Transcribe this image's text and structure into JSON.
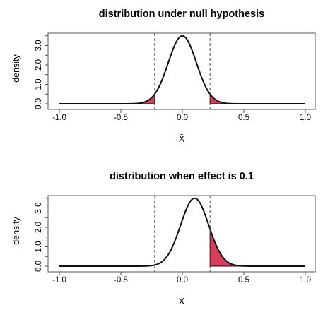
{
  "chart_data": [
    {
      "type": "line",
      "title": "distribution under null hypothesis",
      "xlabel": "X̄",
      "ylabel": "density",
      "xlim": [
        -1.0,
        1.0
      ],
      "ylim": [
        0.0,
        3.5
      ],
      "x_ticks": [
        "-1.0",
        "-0.5",
        "0.0",
        "0.5",
        "1.0"
      ],
      "y_ticks": [
        "0.0",
        "1.0",
        "2.0",
        "3.0"
      ],
      "y_ticks_minor": [
        "0.5",
        "1.5",
        "2.5",
        "3.5"
      ],
      "distribution": {
        "family": "normal",
        "mean": 0.0,
        "sd": 0.114,
        "peak_density": 3.5
      },
      "critical_values": [
        -0.225,
        0.225
      ],
      "shaded_regions": [
        {
          "from": -1.0,
          "to": -0.225,
          "color": "#d63f5a"
        },
        {
          "from": 0.225,
          "to": 1.0,
          "color": "#d63f5a"
        }
      ],
      "grid": false,
      "legend": "none"
    },
    {
      "type": "line",
      "title": "distribution when effect is 0.1",
      "xlabel": "X̄",
      "ylabel": "density",
      "xlim": [
        -1.0,
        1.0
      ],
      "ylim": [
        0.0,
        3.5
      ],
      "x_ticks": [
        "-1.0",
        "-0.5",
        "0.0",
        "0.5",
        "1.0"
      ],
      "y_ticks": [
        "0.0",
        "1.0",
        "2.0",
        "3.0"
      ],
      "y_ticks_minor": [
        "0.5",
        "1.5",
        "2.5",
        "3.5"
      ],
      "distribution": {
        "family": "normal",
        "mean": 0.1,
        "sd": 0.114,
        "peak_density": 3.5
      },
      "critical_values": [
        -0.225,
        0.225
      ],
      "shaded_regions": [
        {
          "from": 0.225,
          "to": 1.0,
          "color": "#d63f5a"
        }
      ],
      "grid": false,
      "legend": "none"
    }
  ]
}
